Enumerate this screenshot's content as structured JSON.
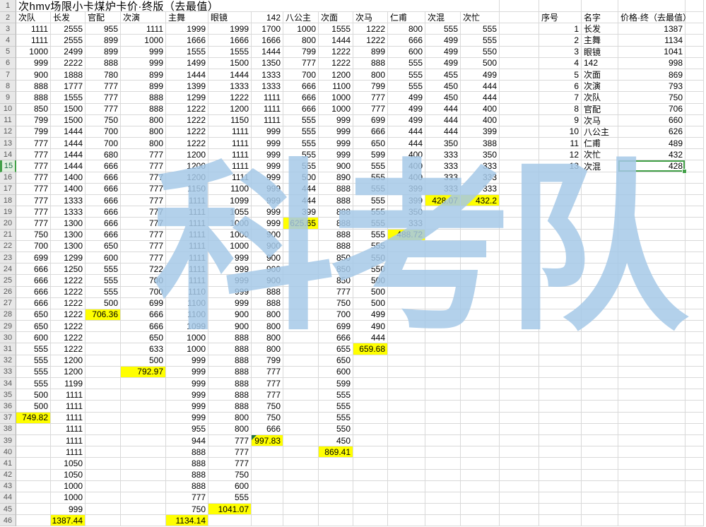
{
  "title": "次hmv场限小卡煤炉卡价·终版（去最值）",
  "watermark": {
    "text": "科考队",
    "color": "#a6c9e8"
  },
  "colors": {
    "highlight_yellow": "#ffff00",
    "selection_green": "#42a048",
    "note_marker_green": "#217346",
    "gridline": "#d9d9d9",
    "row_header_bg": "#e8e8e8"
  },
  "selection": {
    "sheet_row": 15,
    "column": "价格·终（去最值）",
    "value": "428"
  },
  "grid": {
    "columns": [
      "次队",
      "长发",
      "官配",
      "次演",
      "主舞",
      "眼镜",
      "142",
      "八公主",
      "次面",
      "次马",
      "仁甫",
      "次混",
      "次忙"
    ],
    "rows": [
      {
        "n": 3,
        "cells": [
          "1111",
          "2555",
          "955",
          "1111",
          "1999",
          "1999",
          "1700",
          "1000",
          "1555",
          "1222",
          "800",
          "555",
          "555"
        ]
      },
      {
        "n": 4,
        "cells": [
          "1111",
          "2555",
          "899",
          "1000",
          "1666",
          "1666",
          "1666",
          "800",
          "1444",
          "1222",
          "666",
          "499",
          "555"
        ]
      },
      {
        "n": 5,
        "cells": [
          "1000",
          "2499",
          "899",
          "999",
          "1555",
          "1555",
          "1444",
          "799",
          "1222",
          "899",
          "600",
          "499",
          "550"
        ]
      },
      {
        "n": 6,
        "cells": [
          "999",
          "2222",
          "888",
          "999",
          "1499",
          "1500",
          "1350",
          "777",
          "1222",
          "888",
          "555",
          "499",
          "500"
        ]
      },
      {
        "n": 7,
        "cells": [
          "900",
          "1888",
          "780",
          "899",
          "1444",
          "1444",
          "1333",
          "700",
          "1200",
          "800",
          "555",
          "455",
          "499"
        ]
      },
      {
        "n": 8,
        "cells": [
          "888",
          "1777",
          "777",
          "899",
          "1399",
          "1333",
          "1333",
          "666",
          "1100",
          "799",
          "555",
          "450",
          "444"
        ]
      },
      {
        "n": 9,
        "cells": [
          "888",
          "1555",
          "777",
          "888",
          "1299",
          "1222",
          "1111",
          "666",
          "1000",
          "777",
          "499",
          "450",
          "444"
        ]
      },
      {
        "n": 10,
        "cells": [
          "850",
          "1500",
          "777",
          "888",
          "1222",
          "1200",
          "1111",
          "666",
          "1000",
          "777",
          "499",
          "444",
          "400"
        ]
      },
      {
        "n": 11,
        "cells": [
          "799",
          "1500",
          "750",
          "800",
          "1222",
          "1150",
          "1111",
          "555",
          "999",
          "699",
          "499",
          "444",
          "400"
        ]
      },
      {
        "n": 12,
        "cells": [
          "799",
          "1444",
          "700",
          "800",
          "1222",
          "1111",
          "999",
          "555",
          "999",
          "666",
          "444",
          "444",
          "399"
        ]
      },
      {
        "n": 13,
        "cells": [
          "777",
          "1444",
          "700",
          "800",
          "1222",
          "1111",
          "999",
          "555",
          "999",
          "650",
          "444",
          "350",
          "388"
        ]
      },
      {
        "n": 14,
        "cells": [
          "777",
          "1444",
          "680",
          "777",
          "1200",
          "1111",
          "999",
          "555",
          "999",
          "599",
          "400",
          "333",
          "350"
        ]
      },
      {
        "n": 15,
        "cells": [
          "777",
          "1444",
          "666",
          "777",
          "1200",
          "1111",
          "999",
          "555",
          "900",
          "555",
          "400",
          "333",
          "333"
        ]
      },
      {
        "n": 16,
        "cells": [
          "777",
          "1400",
          "666",
          "777",
          "1200",
          "1111",
          "999",
          "500",
          "890",
          "555",
          "400",
          "333",
          "333"
        ]
      },
      {
        "n": 17,
        "cells": [
          "777",
          "1400",
          "666",
          "777",
          "1150",
          "1100",
          "999",
          "444",
          "888",
          "555",
          "399",
          "333",
          "333"
        ]
      },
      {
        "n": 18,
        "cells": [
          "777",
          "1333",
          "666",
          "777",
          "1111",
          "1099",
          "999",
          "444",
          "888",
          "555",
          "399",
          {
            "v": "428.07",
            "hl": true
          },
          {
            "v": "432.2",
            "hl": true
          }
        ]
      },
      {
        "n": 19,
        "cells": [
          "777",
          "1333",
          "666",
          "777",
          "1111",
          "1055",
          "999",
          "399",
          "888",
          "555",
          "350",
          "",
          ""
        ]
      },
      {
        "n": 20,
        "cells": [
          "777",
          "1300",
          "666",
          "777",
          "1111",
          "1000",
          "999",
          {
            "v": "625.65",
            "hl": true
          },
          "888",
          "555",
          "333",
          "",
          ""
        ]
      },
      {
        "n": 21,
        "cells": [
          "750",
          "1300",
          "666",
          "777",
          "1111",
          "1000",
          "900",
          "",
          "888",
          "555",
          {
            "v": "488.72",
            "hl": true
          },
          "",
          ""
        ]
      },
      {
        "n": 22,
        "cells": [
          "700",
          "1300",
          "650",
          "777",
          "1111",
          "1000",
          "900",
          "",
          "888",
          "555",
          "",
          "",
          ""
        ]
      },
      {
        "n": 23,
        "cells": [
          "699",
          "1299",
          "600",
          "777",
          "1111",
          "999",
          "900",
          "",
          "850",
          "550",
          "",
          "",
          ""
        ]
      },
      {
        "n": 24,
        "cells": [
          "666",
          "1250",
          "555",
          "722",
          "1111",
          "999",
          "900",
          "",
          "850",
          "550",
          "",
          "",
          ""
        ]
      },
      {
        "n": 25,
        "cells": [
          "666",
          "1222",
          "555",
          "700",
          "1111",
          "999",
          "900",
          "",
          "850",
          "500",
          "",
          "",
          ""
        ]
      },
      {
        "n": 26,
        "cells": [
          "666",
          "1222",
          "555",
          "700",
          "1110",
          "999",
          "888",
          "",
          "777",
          "500",
          "",
          "",
          ""
        ]
      },
      {
        "n": 27,
        "cells": [
          "666",
          "1222",
          "500",
          "699",
          "1100",
          "999",
          "888",
          "",
          "750",
          "500",
          "",
          "",
          ""
        ]
      },
      {
        "n": 28,
        "cells": [
          "650",
          "1222",
          {
            "v": "706.36",
            "hl": true
          },
          "666",
          "1100",
          "900",
          "800",
          "",
          "700",
          "499",
          "",
          "",
          ""
        ]
      },
      {
        "n": 29,
        "cells": [
          "650",
          "1222",
          "",
          "666",
          "1099",
          "900",
          "800",
          "",
          "699",
          "490",
          "",
          "",
          ""
        ]
      },
      {
        "n": 30,
        "cells": [
          "600",
          "1222",
          "",
          "650",
          "1000",
          "888",
          "800",
          "",
          "666",
          "444",
          "",
          "",
          ""
        ]
      },
      {
        "n": 31,
        "cells": [
          "555",
          "1222",
          "",
          "633",
          "1000",
          "888",
          "800",
          "",
          "655",
          {
            "v": "659.68",
            "hl": true
          },
          "",
          "",
          ""
        ]
      },
      {
        "n": 32,
        "cells": [
          "555",
          "1200",
          "",
          "500",
          "999",
          "888",
          "799",
          "",
          "650",
          "",
          "",
          "",
          ""
        ]
      },
      {
        "n": 33,
        "cells": [
          "555",
          "1200",
          "",
          {
            "v": "792.97",
            "hl": true
          },
          "999",
          "888",
          "777",
          "",
          "600",
          "",
          "",
          "",
          ""
        ]
      },
      {
        "n": 34,
        "cells": [
          "555",
          "1199",
          "",
          "",
          "999",
          "888",
          "777",
          "",
          "599",
          "",
          "",
          "",
          ""
        ]
      },
      {
        "n": 35,
        "cells": [
          "500",
          "1111",
          "",
          "",
          "999",
          "888",
          "777",
          "",
          "555",
          "",
          "",
          "",
          ""
        ]
      },
      {
        "n": 36,
        "cells": [
          "500",
          "1111",
          "",
          "",
          "999",
          "888",
          "750",
          "",
          "555",
          "",
          "",
          "",
          ""
        ]
      },
      {
        "n": 37,
        "cells": [
          {
            "v": "749.82",
            "hl": true
          },
          "1111",
          "",
          "",
          "999",
          "800",
          "750",
          "",
          "555",
          "",
          "",
          "",
          ""
        ]
      },
      {
        "n": 38,
        "cells": [
          "",
          "1111",
          "",
          "",
          "955",
          "800",
          "666",
          "",
          "550",
          "",
          "",
          "",
          ""
        ]
      },
      {
        "n": 39,
        "cells": [
          "",
          "1111",
          "",
          "",
          "944",
          "777",
          {
            "v": "997.83",
            "hl": true,
            "note": true
          },
          "",
          "450",
          "",
          "",
          "",
          ""
        ]
      },
      {
        "n": 40,
        "cells": [
          "",
          "1111",
          "",
          "",
          "888",
          "777",
          "",
          "",
          {
            "v": "869.41",
            "hl": true
          },
          "",
          "",
          "",
          ""
        ]
      },
      {
        "n": 41,
        "cells": [
          "",
          "1050",
          "",
          "",
          "888",
          "777",
          "",
          "",
          "",
          "",
          "",
          "",
          ""
        ]
      },
      {
        "n": 42,
        "cells": [
          "",
          "1050",
          "",
          "",
          "888",
          "750",
          "",
          "",
          "",
          "",
          "",
          "",
          ""
        ]
      },
      {
        "n": 43,
        "cells": [
          "",
          "1000",
          "",
          "",
          "888",
          "600",
          "",
          "",
          "",
          "",
          "",
          "",
          ""
        ]
      },
      {
        "n": 44,
        "cells": [
          "",
          "1000",
          "",
          "",
          "777",
          "555",
          "",
          "",
          "",
          "",
          "",
          "",
          ""
        ]
      },
      {
        "n": 45,
        "cells": [
          "",
          "999",
          "",
          "",
          "750",
          {
            "v": "1041.07",
            "hl": true
          },
          "",
          "",
          "",
          "",
          "",
          "",
          ""
        ]
      },
      {
        "n": 46,
        "cells": [
          "",
          {
            "v": "1387.44",
            "hl": true
          },
          "",
          "",
          {
            "v": "1134.14",
            "hl": true
          },
          "",
          "",
          "",
          "",
          "",
          "",
          "",
          ""
        ]
      }
    ]
  },
  "rank_table": {
    "headers": {
      "index": "序号",
      "name": "名字",
      "price": "价格·终（去最值）"
    },
    "rows": [
      {
        "no": "1",
        "name": "长发",
        "price": "1387"
      },
      {
        "no": "2",
        "name": "主舞",
        "price": "1134"
      },
      {
        "no": "3",
        "name": "眼镜",
        "price": "1041"
      },
      {
        "no": "4",
        "name": "142",
        "price": "998"
      },
      {
        "no": "5",
        "name": "次面",
        "price": "869"
      },
      {
        "no": "6",
        "name": "次演",
        "price": "793"
      },
      {
        "no": "7",
        "name": "次队",
        "price": "750"
      },
      {
        "no": "8",
        "name": "官配",
        "price": "706"
      },
      {
        "no": "9",
        "name": "次马",
        "price": "660"
      },
      {
        "no": "10",
        "name": "八公主",
        "price": "626"
      },
      {
        "no": "11",
        "name": "仁甫",
        "price": "489"
      },
      {
        "no": "12",
        "name": "次忙",
        "price": "432"
      },
      {
        "no": "13",
        "name": "次混",
        "price": "428",
        "selected": true
      }
    ]
  }
}
